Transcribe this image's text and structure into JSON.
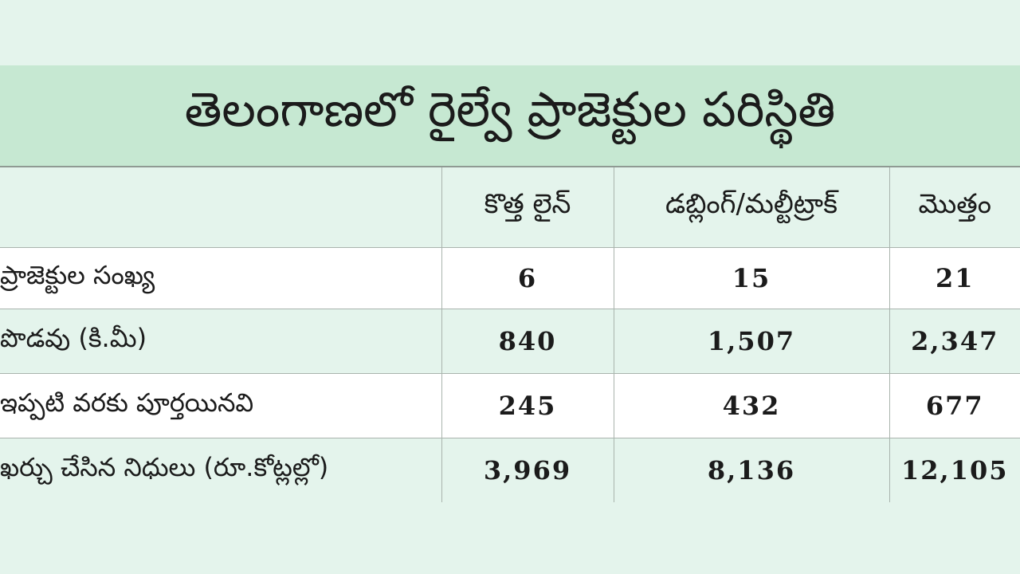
{
  "title": "తెలంగాణలో రైల్వే ప్రాజెక్టుల పరిస్థితి",
  "table": {
    "headers": [
      "",
      "కొత్త లైన్",
      "డబ్లింగ్/మల్టీట్రాక్",
      "మొత్తం"
    ],
    "rows": [
      {
        "label": "ప్రాజెక్టుల సంఖ్య",
        "values": [
          "6",
          "15",
          "21"
        ]
      },
      {
        "label": "పొడవు (కి.మీ)",
        "values": [
          "840",
          "1,507",
          "2,347"
        ]
      },
      {
        "label": "ఇప్పటి వరకు పూర్తయినవి",
        "values": [
          "245",
          "432",
          "677"
        ]
      },
      {
        "label": "ఖర్చు చేసిన నిధులు (రూ.కోట్లల్లో)",
        "values": [
          "3,969",
          "8,136",
          "12,105"
        ]
      }
    ]
  },
  "colors": {
    "background": "#e4f4ec",
    "title_band": "#c6e8d2",
    "light_row": "#ffffff",
    "grid": "#a9b4ad"
  }
}
